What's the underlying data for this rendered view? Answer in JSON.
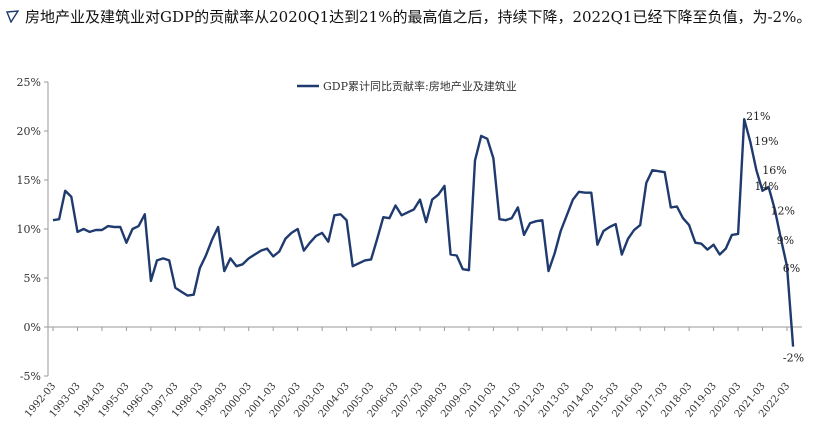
{
  "headline": {
    "text": "房地产业及建筑业对GDP的贡献率从2020Q1达到21%的最高值之后，持续下降，2022Q1已经下降至负值，为-2%。"
  },
  "colors": {
    "line": "#1f3a6e",
    "axis": "#9a9a9a",
    "text": "#333333",
    "bullet": "#1f3a6e"
  },
  "icon": "triangle-bullet-icon",
  "chart_data": {
    "type": "line",
    "legend": {
      "label": "GDP累计同比贡献率:房地产业及建筑业",
      "placement": "top-center"
    },
    "ylim": [
      -5,
      25
    ],
    "yticks": [
      "-5%",
      "0%",
      "5%",
      "10%",
      "15%",
      "20%",
      "25%"
    ],
    "ytick_values": [
      -5,
      0,
      5,
      10,
      15,
      20,
      25
    ],
    "grid": false,
    "x_tick_labels": [
      "1992-03",
      "1993-03",
      "1994-03",
      "1995-03",
      "1996-03",
      "1997-03",
      "1998-03",
      "1999-03",
      "2000-03",
      "2001-03",
      "2002-03",
      "2003-03",
      "2004-03",
      "2005-03",
      "2006-03",
      "2007-03",
      "2008-03",
      "2009-03",
      "2010-03",
      "2011-03",
      "2012-03",
      "2013-03",
      "2014-03",
      "2015-03",
      "2016-03",
      "2017-03",
      "2018-03",
      "2019-03",
      "2020-03",
      "2021-03",
      "2022-03"
    ],
    "start": "1992-03",
    "frequency": "quarterly",
    "values": [
      10.9,
      11.0,
      13.9,
      13.3,
      9.7,
      10.0,
      9.7,
      9.9,
      9.9,
      10.3,
      10.2,
      10.2,
      8.6,
      10.0,
      10.3,
      11.5,
      4.7,
      6.8,
      7.0,
      6.8,
      4.0,
      3.6,
      3.2,
      3.3,
      6.0,
      7.3,
      8.9,
      10.2,
      5.7,
      7.0,
      6.2,
      6.4,
      7.0,
      7.4,
      7.8,
      8.0,
      7.2,
      7.7,
      9.0,
      9.6,
      10.0,
      7.8,
      8.6,
      9.3,
      9.6,
      8.7,
      11.4,
      11.5,
      10.9,
      6.2,
      6.5,
      6.8,
      6.9,
      9.0,
      11.2,
      11.1,
      12.4,
      11.4,
      11.7,
      12.0,
      13.0,
      10.7,
      13.0,
      13.5,
      14.4,
      7.4,
      7.3,
      5.9,
      5.8,
      17.0,
      19.5,
      19.2,
      17.2,
      11.0,
      10.9,
      11.1,
      12.2,
      9.4,
      10.6,
      10.8,
      10.9,
      5.7,
      7.5,
      9.8,
      11.4,
      13.0,
      13.8,
      13.7,
      13.7,
      8.4,
      9.8,
      10.2,
      10.5,
      7.4,
      9.0,
      9.9,
      10.4,
      14.7,
      16.0,
      15.9,
      15.8,
      12.2,
      12.3,
      11.1,
      10.4,
      8.6,
      8.5,
      7.9,
      8.4,
      7.4,
      8.0,
      9.4,
      9.5,
      21.2,
      18.9,
      16.0,
      13.9,
      14.3,
      12.0,
      9.0,
      6.2,
      -2.0
    ],
    "annotations": [
      {
        "label": "21%",
        "value": 21
      },
      {
        "label": "19%",
        "value": 19
      },
      {
        "label": "16%",
        "value": 16
      },
      {
        "label": "14%",
        "value": 14
      },
      {
        "label": "12%",
        "value": 12
      },
      {
        "label": "9%",
        "value": 9
      },
      {
        "label": "6%",
        "value": 6
      },
      {
        "label": "-2%",
        "value": -2
      }
    ]
  }
}
